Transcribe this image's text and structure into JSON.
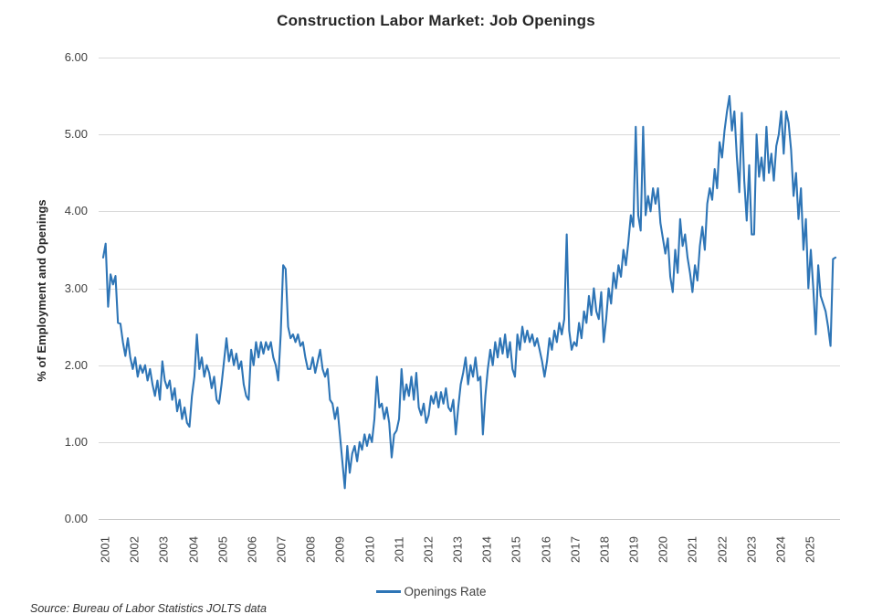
{
  "title": "Construction Labor Market: Job Openings",
  "legend": {
    "label": "Openings Rate"
  },
  "source_note": "Source: Bureau of Labor Statistics JOLTS data",
  "colors": {
    "line": "#2e75b6",
    "gridline": "#d9d9d9",
    "axis_text": "#404040",
    "title_text": "#262626"
  },
  "chart_data": {
    "type": "line",
    "title": "Construction Labor Market: Job Openings",
    "xlabel": "",
    "ylabel": "% of Employment and Openings",
    "ylim": [
      0,
      6
    ],
    "ytick_step": 1,
    "ytick_labels": [
      "0.00",
      "1.00",
      "2.00",
      "3.00",
      "4.00",
      "5.00",
      "6.00"
    ],
    "grid": "horizontal",
    "legend_position": "bottom",
    "x_unit": "month",
    "x_years": [
      "2001",
      "2002",
      "2003",
      "2004",
      "2005",
      "2006",
      "2007",
      "2008",
      "2009",
      "2010",
      "2011",
      "2012",
      "2013",
      "2014",
      "2015",
      "2016",
      "2017",
      "2018",
      "2019",
      "2020",
      "2021",
      "2022",
      "2023",
      "2024",
      "2025"
    ],
    "series": [
      {
        "name": "Openings Rate",
        "values": [
          3.4,
          3.58,
          2.76,
          3.18,
          3.05,
          3.16,
          2.55,
          2.54,
          2.3,
          2.12,
          2.35,
          2.1,
          1.95,
          2.1,
          1.85,
          2.0,
          1.9,
          2.0,
          1.8,
          1.95,
          1.75,
          1.6,
          1.8,
          1.55,
          2.05,
          1.8,
          1.7,
          1.8,
          1.55,
          1.7,
          1.4,
          1.55,
          1.3,
          1.45,
          1.25,
          1.2,
          1.6,
          1.85,
          2.4,
          1.95,
          2.1,
          1.85,
          2.0,
          1.9,
          1.7,
          1.85,
          1.55,
          1.5,
          1.75,
          2.05,
          2.35,
          2.05,
          2.2,
          2.0,
          2.15,
          1.95,
          2.05,
          1.75,
          1.6,
          1.55,
          2.2,
          2.0,
          2.3,
          2.1,
          2.3,
          2.15,
          2.3,
          2.2,
          2.3,
          2.1,
          2.0,
          1.8,
          2.4,
          3.3,
          3.25,
          2.5,
          2.35,
          2.4,
          2.3,
          2.4,
          2.25,
          2.3,
          2.1,
          1.95,
          1.95,
          2.1,
          1.9,
          2.05,
          2.2,
          1.95,
          1.85,
          1.95,
          1.55,
          1.5,
          1.3,
          1.45,
          1.1,
          0.75,
          0.4,
          0.95,
          0.6,
          0.85,
          0.95,
          0.75,
          1.0,
          0.9,
          1.1,
          0.95,
          1.1,
          1.0,
          1.3,
          1.85,
          1.45,
          1.5,
          1.3,
          1.45,
          1.25,
          0.8,
          1.1,
          1.15,
          1.3,
          1.95,
          1.55,
          1.75,
          1.6,
          1.85,
          1.55,
          1.9,
          1.45,
          1.35,
          1.5,
          1.25,
          1.35,
          1.6,
          1.5,
          1.65,
          1.45,
          1.65,
          1.5,
          1.7,
          1.45,
          1.4,
          1.55,
          1.1,
          1.45,
          1.75,
          1.9,
          2.1,
          1.75,
          2.0,
          1.85,
          2.1,
          1.8,
          1.85,
          1.1,
          1.6,
          1.95,
          2.2,
          2.0,
          2.3,
          2.1,
          2.35,
          2.15,
          2.4,
          2.1,
          2.3,
          1.95,
          1.85,
          2.4,
          2.2,
          2.5,
          2.3,
          2.45,
          2.3,
          2.4,
          2.25,
          2.35,
          2.2,
          2.05,
          1.85,
          2.05,
          2.35,
          2.2,
          2.45,
          2.3,
          2.55,
          2.4,
          2.6,
          3.7,
          2.45,
          2.2,
          2.3,
          2.25,
          2.55,
          2.35,
          2.7,
          2.55,
          2.9,
          2.65,
          3.0,
          2.7,
          2.6,
          2.95,
          2.3,
          2.6,
          3.0,
          2.8,
          3.2,
          3.0,
          3.3,
          3.15,
          3.5,
          3.3,
          3.6,
          3.95,
          3.8,
          5.1,
          3.95,
          3.75,
          5.1,
          3.95,
          4.2,
          4.0,
          4.3,
          4.1,
          4.3,
          3.85,
          3.65,
          3.45,
          3.65,
          3.15,
          2.95,
          3.5,
          3.2,
          3.9,
          3.55,
          3.7,
          3.4,
          3.2,
          2.95,
          3.3,
          3.1,
          3.55,
          3.8,
          3.5,
          4.1,
          4.3,
          4.15,
          4.55,
          4.3,
          4.9,
          4.7,
          5.05,
          5.3,
          5.5,
          5.05,
          5.3,
          4.7,
          4.25,
          5.28,
          4.4,
          3.88,
          4.6,
          3.7,
          3.7,
          5.0,
          4.45,
          4.7,
          4.4,
          5.1,
          4.5,
          4.75,
          4.4,
          4.85,
          5.0,
          5.3,
          4.75,
          5.3,
          5.15,
          4.8,
          4.2,
          4.5,
          3.9,
          4.3,
          3.5,
          3.9,
          3.0,
          3.5,
          3.0,
          2.4,
          3.3,
          2.9,
          2.8,
          2.7,
          2.5,
          2.25,
          3.38,
          3.4
        ]
      }
    ]
  }
}
